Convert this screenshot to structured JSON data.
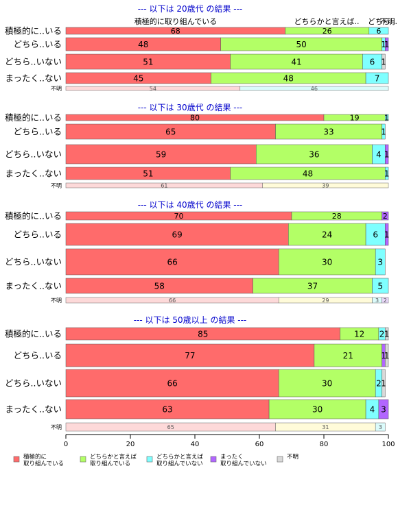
{
  "colors": {
    "active": "#ff6b6b",
    "somewhat_active": "#b3ff66",
    "somewhat_inactive": "#7fffff",
    "inactive": "#b266ff",
    "unknown": "#d9d9d9",
    "section_title": "#0000cc",
    "unknown_row_first": "#fdd9d9",
    "unknown_row_second_20s": "#dbfbfb",
    "unknown_row_second": "#fffbd9",
    "unknown_row_third": "#dbfbfb",
    "unknown_row_fourth": "#ead9fb"
  },
  "header_labels": [
    "積極的に取り組んでいる",
    "どちらかと言えば..",
    "どちら..",
    "不明.."
  ],
  "legend": [
    {
      "key": "active",
      "label_lines": [
        "積極的に",
        "取り組んでいる"
      ]
    },
    {
      "key": "somewhat_active",
      "label_lines": [
        "どちらかと言えば",
        "取り組んでいる"
      ]
    },
    {
      "key": "somewhat_inactive",
      "label_lines": [
        "どちらかと言えば",
        "取り組んでいない"
      ]
    },
    {
      "key": "inactive",
      "label_lines": [
        "まったく",
        "取り組んでいない"
      ]
    },
    {
      "key": "unknown",
      "label_lines": [
        "不明"
      ]
    }
  ],
  "chart_data": {
    "type": "bar",
    "orientation": "horizontal",
    "stacked": "percent",
    "xlim": [
      0,
      100
    ],
    "xticks": [
      0,
      20,
      40,
      60,
      80,
      100
    ],
    "series": [
      "積極的に取り組んでいる",
      "どちらかと言えば取り組んでいる",
      "どちらかと言えば取り組んでいない",
      "まったく取り組んでいない",
      "不明"
    ],
    "panels": [
      {
        "title": "--- 以下は 20歳代 の結果 ---",
        "rows": [
          {
            "label": "積極的に..いる",
            "values": [
              68,
              26,
              6,
              0,
              0
            ]
          },
          {
            "label": "どちら..いる",
            "values": [
              48,
              50,
              1,
              1,
              0
            ]
          },
          {
            "label": "どちら..いない",
            "values": [
              51,
              41,
              6,
              0,
              1
            ]
          },
          {
            "label": "まったく..ない",
            "values": [
              45,
              48,
              7,
              0,
              0
            ]
          }
        ],
        "unknown_row": {
          "label": "不明",
          "values": [
            54,
            46
          ],
          "colors": [
            "unknown_row_first",
            "unknown_row_second_20s"
          ]
        }
      },
      {
        "title": "--- 以下は 30歳代 の結果 ---",
        "rows": [
          {
            "label": "積極的に..いる",
            "values": [
              80,
              19,
              1,
              0,
              0
            ]
          },
          {
            "label": "どちら..いる",
            "values": [
              65,
              33,
              1,
              0,
              0
            ]
          },
          {
            "label": "どちら..いない",
            "values": [
              59,
              36,
              4,
              1,
              0
            ]
          },
          {
            "label": "まったく..ない",
            "values": [
              51,
              48,
              1,
              0,
              0
            ]
          }
        ],
        "unknown_row": {
          "label": "不明",
          "values": [
            61,
            39
          ],
          "colors": [
            "unknown_row_first",
            "unknown_row_second"
          ]
        }
      },
      {
        "title": "--- 以下は 40歳代 の結果 ---",
        "rows": [
          {
            "label": "積極的に..いる",
            "values": [
              70,
              28,
              0,
              2,
              0
            ]
          },
          {
            "label": "どちら..いる",
            "values": [
              69,
              24,
              6,
              1,
              0
            ]
          },
          {
            "label": "どちら..いない",
            "values": [
              66,
              30,
              3,
              0,
              0
            ]
          },
          {
            "label": "まったく..ない",
            "values": [
              58,
              37,
              5,
              0,
              0
            ]
          }
        ],
        "unknown_row": {
          "label": "不明",
          "values": [
            66,
            29,
            3,
            2
          ],
          "colors": [
            "unknown_row_first",
            "unknown_row_second",
            "unknown_row_third",
            "unknown_row_fourth"
          ]
        }
      },
      {
        "title": "--- 以下は 50歳以上 の結果 ---",
        "rows": [
          {
            "label": "積極的に..いる",
            "values": [
              85,
              12,
              2,
              0,
              1
            ]
          },
          {
            "label": "どちら..いる",
            "values": [
              77,
              21,
              0,
              1,
              1
            ]
          },
          {
            "label": "どちら..いない",
            "values": [
              66,
              30,
              2,
              0,
              1
            ]
          },
          {
            "label": "まったく..ない",
            "values": [
              63,
              30,
              4,
              3,
              0
            ]
          }
        ],
        "unknown_row": {
          "label": "不明",
          "values": [
            65,
            31,
            3
          ],
          "colors": [
            "unknown_row_first",
            "unknown_row_second",
            "unknown_row_third"
          ]
        }
      }
    ]
  }
}
